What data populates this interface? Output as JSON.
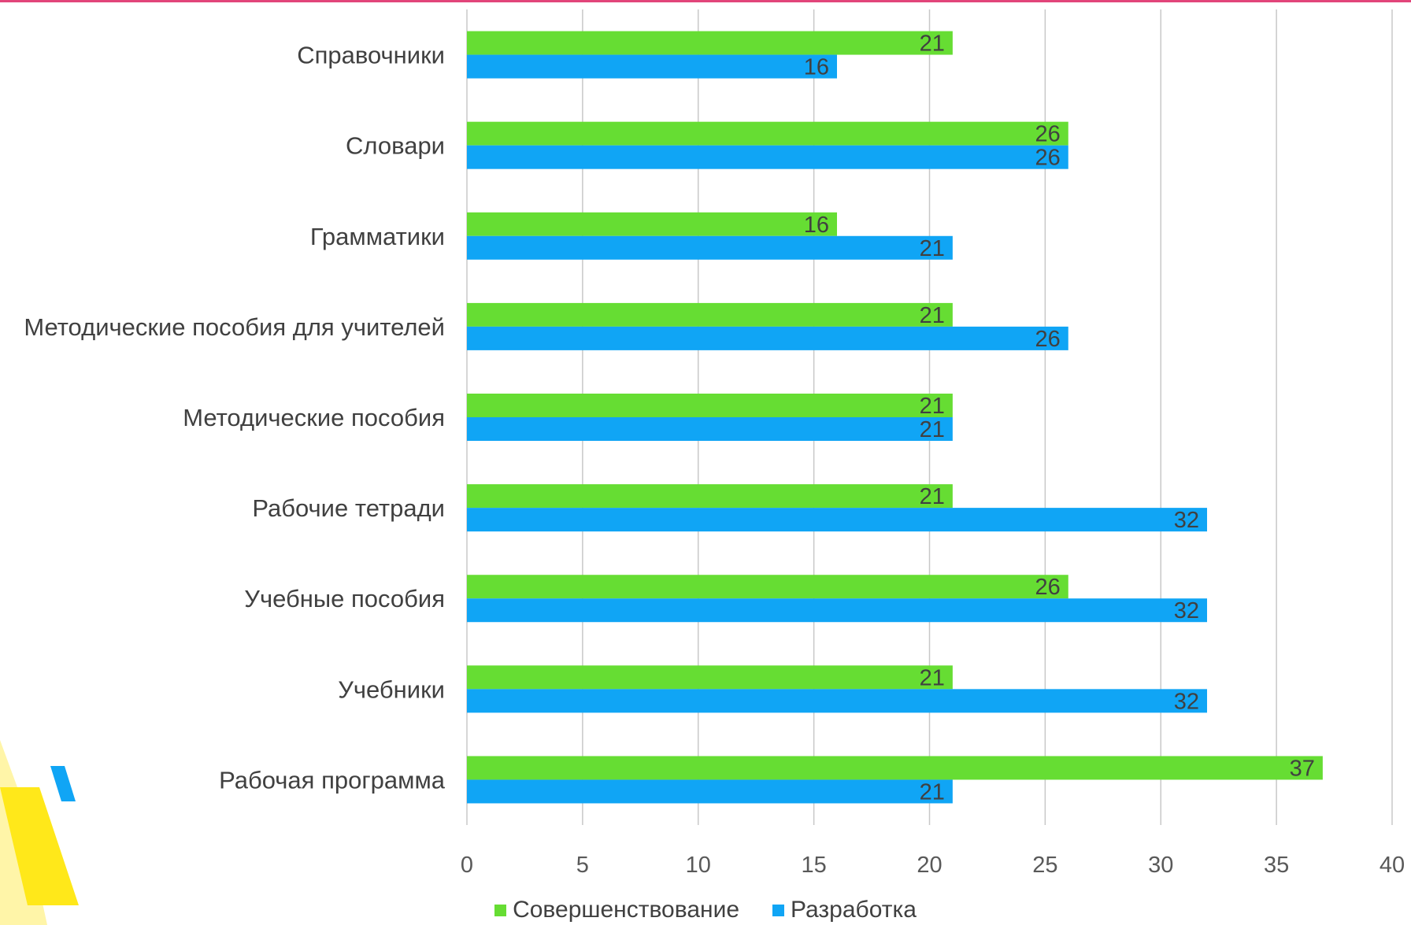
{
  "chart_data": {
    "type": "bar",
    "orientation": "horizontal",
    "categories": [
      "Справочники",
      "Словари",
      "Грамматики",
      "Методические пособия для учителей",
      "Методические пособия",
      "Рабочие тетради",
      "Учебные пособия",
      "Учебники",
      "Рабочая программа"
    ],
    "series": [
      {
        "name": "Совершенствование",
        "color": "#66dd33",
        "values": [
          21,
          26,
          16,
          21,
          21,
          21,
          26,
          21,
          37
        ]
      },
      {
        "name": "Разработка",
        "color": "#10a5f5",
        "values": [
          16,
          26,
          21,
          26,
          21,
          32,
          32,
          32,
          21
        ]
      }
    ],
    "xlim": [
      0,
      40
    ],
    "xticks": [
      "0",
      "5",
      "10",
      "15",
      "20",
      "25",
      "30",
      "35",
      "40"
    ],
    "grid": "vertical",
    "legend": "bottom",
    "data_labels": true
  },
  "colors": {
    "accent_top_rule": "#e2457a",
    "gridline": "#c8c8c8",
    "decor_yellow": "#ffe81a",
    "decor_pale_yellow": "#fff5a8",
    "decor_blue": "#10a5f5"
  }
}
